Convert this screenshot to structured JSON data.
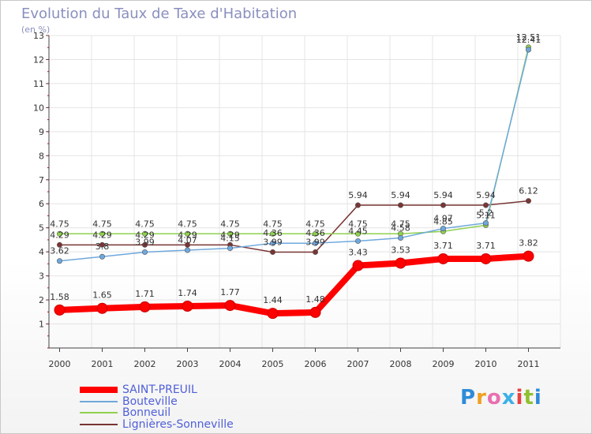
{
  "header": {
    "title": "Evolution du Taux de Taxe d'Habitation",
    "unit": "(en %)"
  },
  "chart_data": {
    "type": "line",
    "title": "Evolution du Taux de Taxe d'Habitation",
    "ylabel": "(en %)",
    "xlabel": "",
    "x": [
      "2000",
      "2001",
      "2002",
      "2003",
      "2004",
      "2005",
      "2006",
      "2007",
      "2008",
      "2009",
      "2010",
      "2011"
    ],
    "ylim": [
      0,
      13
    ],
    "yticks": [
      "1",
      "2",
      "3",
      "4",
      "5",
      "6",
      "7",
      "8",
      "9",
      "10",
      "11",
      "12",
      "13"
    ],
    "grid": true,
    "legend": "bottom-left",
    "series": [
      {
        "name": "SAINT-PREUIL",
        "color": "#ff0000",
        "values": [
          1.58,
          1.65,
          1.71,
          1.74,
          1.77,
          1.44,
          1.48,
          3.43,
          3.53,
          3.71,
          3.71,
          3.82
        ],
        "labels": [
          "1.58",
          "1.65",
          "1.71",
          "1.74",
          "1.77",
          "1.44",
          "1.48",
          "3.43",
          "3.53",
          "3.71",
          "3.71",
          "3.82"
        ]
      },
      {
        "name": "Bouteville",
        "color": "#6fa8dc",
        "values": [
          3.62,
          3.8,
          3.99,
          4.07,
          4.15,
          4.36,
          4.36,
          4.45,
          4.58,
          4.97,
          5.2,
          12.41
        ],
        "labels": [
          "3.62",
          "3.8",
          "3.99",
          "4.07",
          "4.15",
          "4.36",
          "4.36",
          "4.45",
          "4.58",
          "4.97",
          "5.2",
          "12.41"
        ]
      },
      {
        "name": "Bonneuil",
        "color": "#8fd14f",
        "values": [
          4.75,
          4.75,
          4.75,
          4.75,
          4.75,
          4.75,
          4.75,
          4.75,
          4.75,
          4.85,
          5.11,
          12.51
        ],
        "labels": [
          "4.75",
          "4.75",
          "4.75",
          "4.75",
          "4.75",
          "4.75",
          "4.75",
          "4.75",
          "4.75",
          "4.85",
          "5.11",
          "12.51"
        ]
      },
      {
        "name": "Lignières-Sonneville",
        "color": "#7a3535",
        "values": [
          4.29,
          4.29,
          4.29,
          4.29,
          4.29,
          3.99,
          3.99,
          5.94,
          5.94,
          5.94,
          5.94,
          6.12
        ],
        "labels": [
          "4.29",
          "4.29",
          "4.29",
          "4.29",
          "4.29",
          "3.99",
          "3.99",
          "5.94",
          "5.94",
          "5.94",
          "5.94",
          "6.12"
        ]
      }
    ]
  },
  "logo": {
    "letters": [
      "P",
      "r",
      "o",
      "x",
      "i",
      "t",
      "i"
    ],
    "colors": [
      "#2e8bd8",
      "#f0a020",
      "#e86fb0",
      "#3cb0e8",
      "#e84040",
      "#90c030",
      "#2e8bd8"
    ]
  }
}
